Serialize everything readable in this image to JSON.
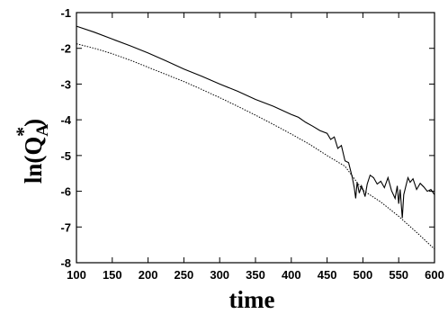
{
  "chart_data": {
    "type": "line",
    "title": "",
    "xlabel": "time",
    "ylabel_base": "ln(Q",
    "ylabel_sup": "*",
    "ylabel_sub": "A",
    "ylabel_close": ")",
    "xlim": [
      100,
      600
    ],
    "ylim": [
      -8,
      -1
    ],
    "xticks": [
      100,
      150,
      200,
      250,
      300,
      350,
      400,
      450,
      500,
      550,
      600
    ],
    "yticks": [
      -8,
      -7,
      -6,
      -5,
      -4,
      -3,
      -2,
      -1
    ],
    "grid": false,
    "legend": "none",
    "series": [
      {
        "style": "solid",
        "color": "#000000",
        "x": [
          100,
          125,
          150,
          175,
          200,
          225,
          250,
          275,
          300,
          325,
          350,
          375,
          400,
          410,
          420,
          430,
          440,
          450,
          455,
          460,
          465,
          470,
          475,
          480,
          485,
          488,
          490,
          492,
          495,
          498,
          500,
          503,
          506,
          510,
          515,
          520,
          525,
          530,
          535,
          540,
          545,
          548,
          550,
          552,
          555,
          557,
          560,
          563,
          566,
          570,
          575,
          580,
          585,
          590,
          595,
          600
        ],
        "y": [
          -1.38,
          -1.55,
          -1.74,
          -1.93,
          -2.13,
          -2.35,
          -2.58,
          -2.78,
          -3.0,
          -3.2,
          -3.43,
          -3.62,
          -3.85,
          -3.93,
          -4.07,
          -4.18,
          -4.3,
          -4.38,
          -4.55,
          -4.48,
          -4.8,
          -4.72,
          -5.15,
          -5.2,
          -5.6,
          -5.9,
          -6.2,
          -5.75,
          -6.05,
          -5.85,
          -5.95,
          -6.15,
          -5.8,
          -5.55,
          -5.62,
          -5.8,
          -5.72,
          -5.9,
          -5.62,
          -5.98,
          -6.2,
          -5.85,
          -6.35,
          -5.95,
          -6.75,
          -6.1,
          -5.85,
          -5.62,
          -5.75,
          -5.65,
          -5.95,
          -5.78,
          -5.88,
          -6.0,
          -5.95,
          -6.1
        ]
      },
      {
        "style": "dotted",
        "color": "#000000",
        "x": [
          100,
          125,
          150,
          175,
          200,
          225,
          250,
          275,
          300,
          325,
          350,
          375,
          400,
          425,
          450,
          475,
          500,
          525,
          550,
          575,
          600
        ],
        "y": [
          -1.87,
          -2.0,
          -2.15,
          -2.33,
          -2.53,
          -2.73,
          -2.93,
          -3.15,
          -3.38,
          -3.62,
          -3.87,
          -4.13,
          -4.4,
          -4.68,
          -5.0,
          -5.3,
          -5.97,
          -6.3,
          -6.7,
          -7.15,
          -7.62
        ]
      }
    ]
  }
}
